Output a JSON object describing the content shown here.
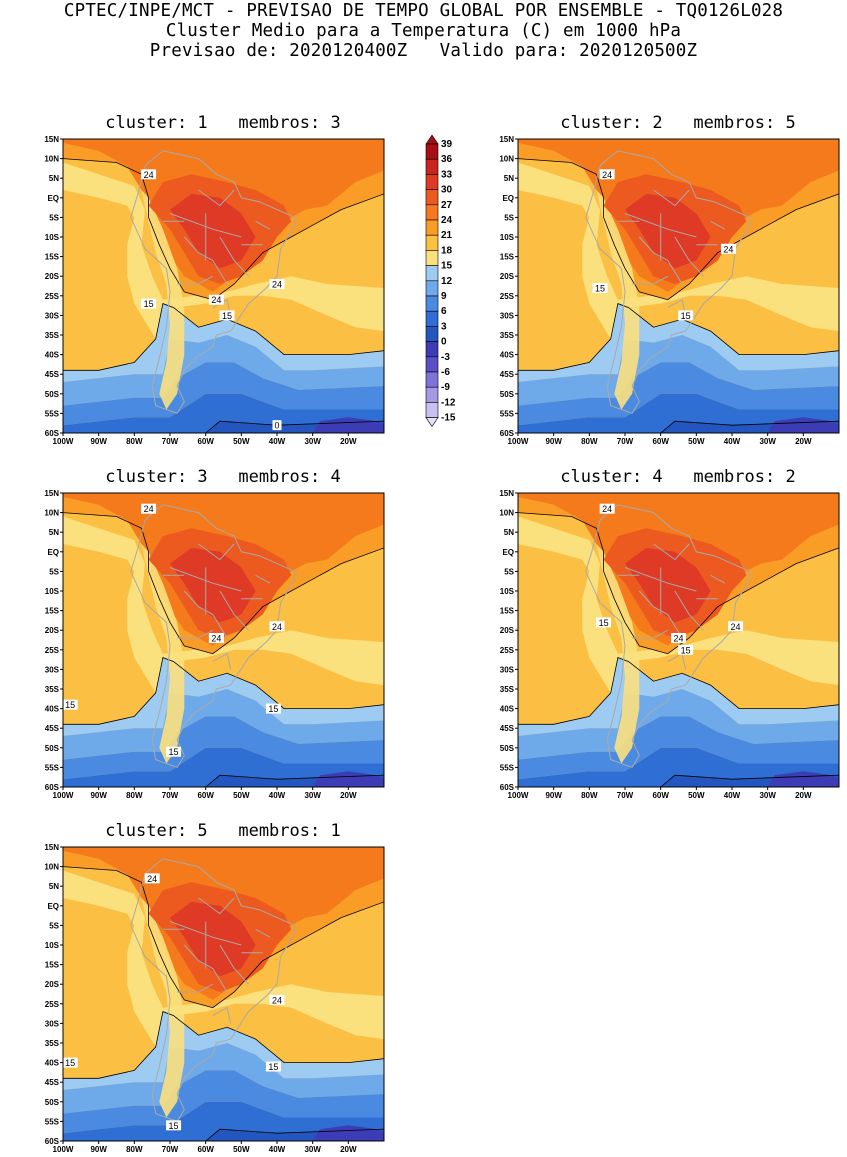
{
  "header": {
    "line1": "CPTEC/INPE/MCT - PREVISAO DE TEMPO GLOBAL POR ENSEMBLE - TQ0126L028",
    "line2": "Cluster Medio para a Temperatura (C) em 1000 hPa",
    "line3": "Previsao de: 2020120400Z   Valido para: 2020120500Z"
  },
  "lat_ticks": [
    "15N",
    "10N",
    "5N",
    "EQ",
    "5S",
    "10S",
    "15S",
    "20S",
    "25S",
    "30S",
    "35S",
    "40S",
    "45S",
    "50S",
    "55S",
    "60S"
  ],
  "lon_ticks": [
    "100W",
    "90W",
    "80W",
    "70W",
    "60W",
    "50W",
    "40W",
    "30W",
    "20W"
  ],
  "colorbar": {
    "levels": [
      "39",
      "36",
      "33",
      "30",
      "27",
      "24",
      "21",
      "18",
      "15",
      "12",
      "9",
      "6",
      "3",
      "0",
      "-3",
      "-6",
      "-9",
      "-12",
      "-15"
    ],
    "colors": [
      "#a50f15",
      "#c92420",
      "#de3a26",
      "#ec5a1f",
      "#f47a1c",
      "#fa9d26",
      "#fbbf43",
      "#fbe07e",
      "#9ecbf2",
      "#6eaaea",
      "#4a8ae0",
      "#2f6fd3",
      "#2456c0",
      "#3c3db4",
      "#5a4fc7",
      "#7f72d8",
      "#a699e3",
      "#c9bff0",
      "#e6e0f8"
    ]
  },
  "panels": [
    {
      "title": "cluster: 1   membros: 3",
      "labels": [
        {
          "text": "24",
          "lon": -76,
          "lat": 6
        },
        {
          "text": "24",
          "lon": -57,
          "lat": -26
        },
        {
          "text": "24",
          "lon": -40,
          "lat": -22
        },
        {
          "text": "15",
          "lon": -76,
          "lat": -27
        },
        {
          "text": "15",
          "lon": -54,
          "lat": -30
        },
        {
          "text": "0",
          "lon": -40,
          "lat": -58
        }
      ]
    },
    {
      "title": "cluster: 2   membros: 5",
      "labels": [
        {
          "text": "24",
          "lon": -75,
          "lat": 6
        },
        {
          "text": "24",
          "lon": -41,
          "lat": -13
        },
        {
          "text": "15",
          "lon": -77,
          "lat": -23
        },
        {
          "text": "15",
          "lon": -53,
          "lat": -30
        }
      ]
    },
    {
      "title": "cluster: 3   membros: 4",
      "labels": [
        {
          "text": "24",
          "lon": -76,
          "lat": 11
        },
        {
          "text": "24",
          "lon": -57,
          "lat": -22
        },
        {
          "text": "24",
          "lon": -40,
          "lat": -19
        },
        {
          "text": "15",
          "lon": -98,
          "lat": -39
        },
        {
          "text": "15",
          "lon": -41,
          "lat": -40
        },
        {
          "text": "15",
          "lon": -69,
          "lat": -51
        }
      ]
    },
    {
      "title": "cluster: 4   membros: 2",
      "labels": [
        {
          "text": "24",
          "lon": -75,
          "lat": 11
        },
        {
          "text": "24",
          "lon": -55,
          "lat": -22
        },
        {
          "text": "24",
          "lon": -39,
          "lat": -19
        },
        {
          "text": "15",
          "lon": -76,
          "lat": -18
        },
        {
          "text": "15",
          "lon": -53,
          "lat": -25
        }
      ]
    },
    {
      "title": "cluster: 5   membros: 1",
      "labels": [
        {
          "text": "24",
          "lon": -75,
          "lat": 7
        },
        {
          "text": "24",
          "lon": -40,
          "lat": -24
        },
        {
          "text": "15",
          "lon": -98,
          "lat": -40
        },
        {
          "text": "15",
          "lon": -41,
          "lat": -41
        },
        {
          "text": "15",
          "lon": -69,
          "lat": -56
        }
      ]
    }
  ]
}
